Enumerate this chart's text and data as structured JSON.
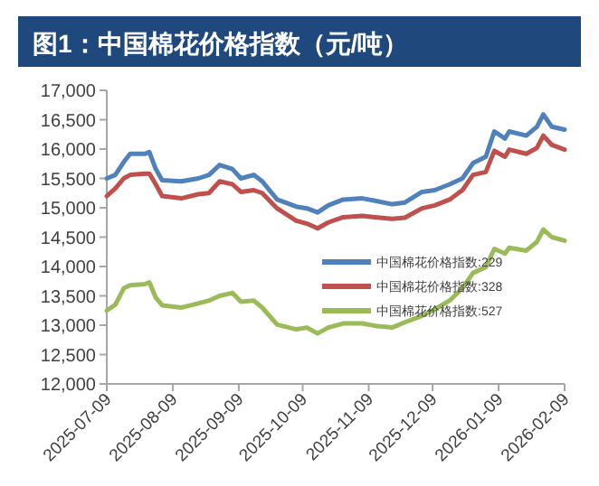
{
  "chart_data": {
    "type": "line",
    "title": "图1：中国棉花价格指数（元/吨）",
    "x": [
      "2025-07-09",
      "2025-07-13",
      "2025-07-17",
      "2025-07-20",
      "2025-07-27",
      "2025-07-29",
      "2025-08-01",
      "2025-08-04",
      "2025-08-13",
      "2025-08-21",
      "2025-08-26",
      "2025-08-31",
      "2025-09-06",
      "2025-09-10",
      "2025-09-16",
      "2025-09-20",
      "2025-09-27",
      "2025-10-06",
      "2025-10-11",
      "2025-10-16",
      "2025-10-21",
      "2025-10-28",
      "2025-11-06",
      "2025-11-12",
      "2025-11-20",
      "2025-11-26",
      "2025-12-04",
      "2025-12-10",
      "2025-12-17",
      "2025-12-23",
      "2025-12-28",
      "2026-01-03",
      "2026-01-07",
      "2026-01-12",
      "2026-01-14",
      "2026-01-22",
      "2026-01-27",
      "2026-01-30",
      "2026-02-03",
      "2026-02-09"
    ],
    "series": [
      {
        "name": "中国棉花价格指数:229",
        "color": "#4f81bd",
        "values": [
          15500,
          15560,
          15780,
          15920,
          15920,
          15950,
          15660,
          15470,
          15450,
          15500,
          15560,
          15730,
          15660,
          15500,
          15560,
          15450,
          15140,
          15020,
          14990,
          14920,
          15040,
          15140,
          15160,
          15120,
          15060,
          15090,
          15270,
          15300,
          15400,
          15500,
          15760,
          15870,
          16300,
          16180,
          16300,
          16230,
          16380,
          16590,
          16380,
          16330
        ]
      },
      {
        "name": "中国棉花价格指数:328",
        "color": "#c0504d",
        "values": [
          15200,
          15330,
          15500,
          15560,
          15580,
          15580,
          15400,
          15200,
          15160,
          15230,
          15250,
          15450,
          15400,
          15270,
          15300,
          15250,
          14990,
          14780,
          14730,
          14650,
          14750,
          14840,
          14860,
          14840,
          14810,
          14830,
          14990,
          15040,
          15140,
          15300,
          15560,
          15610,
          15970,
          15870,
          15990,
          15920,
          16020,
          16230,
          16070,
          15990
        ]
      },
      {
        "name": "中国棉花价格指数:527",
        "color": "#9bbb59",
        "values": [
          13250,
          13350,
          13630,
          13680,
          13700,
          13730,
          13470,
          13340,
          13300,
          13370,
          13420,
          13500,
          13550,
          13400,
          13420,
          13300,
          13010,
          12930,
          12960,
          12860,
          12960,
          13030,
          13030,
          12990,
          12960,
          13050,
          13160,
          13270,
          13420,
          13630,
          13890,
          13990,
          14300,
          14220,
          14320,
          14270,
          14420,
          14630,
          14500,
          14440
        ]
      }
    ],
    "xlim": [
      "2025-07-09",
      "2026-02-09"
    ],
    "xticks": [
      "2025-07-09",
      "2025-08-09",
      "2025-09-09",
      "2025-10-09",
      "2025-11-09",
      "2025-12-09",
      "2026-01-09",
      "2026-02-09"
    ],
    "ylim": [
      12000,
      17000
    ],
    "yticks": [
      {
        "value": 12000,
        "label": "12,000"
      },
      {
        "value": 12500,
        "label": "12,500"
      },
      {
        "value": 13000,
        "label": "13,000"
      },
      {
        "value": 13500,
        "label": "13,500"
      },
      {
        "value": 14000,
        "label": "14,000"
      },
      {
        "value": 14500,
        "label": "14,500"
      },
      {
        "value": 15000,
        "label": "15,000"
      },
      {
        "value": 15500,
        "label": "15,500"
      },
      {
        "value": 16000,
        "label": "16,000"
      },
      {
        "value": 16500,
        "label": "16,500"
      },
      {
        "value": 17000,
        "label": "17,000"
      }
    ],
    "grid": false,
    "legend": "right",
    "line_style": "solid"
  }
}
